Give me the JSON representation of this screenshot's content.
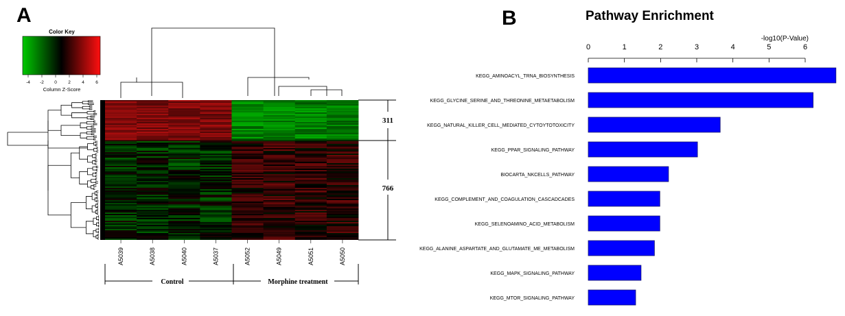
{
  "panel_a": {
    "letter": "A",
    "color_key": {
      "title": "Color Key",
      "label": "Column Z-Score",
      "ticks": [
        "-4",
        "-2",
        "0",
        "2",
        "4",
        "6"
      ],
      "colors": [
        "#00c800",
        "#000000",
        "#ff0000"
      ]
    }
  },
  "panel_b": {
    "letter": "B"
  },
  "chart_data": [
    {
      "type": "heatmap",
      "title": "",
      "samples": [
        "A5039",
        "A5038",
        "A5040",
        "A5037",
        "A5052",
        "A5049",
        "A5051",
        "A5050"
      ],
      "groups": [
        {
          "label": "Control",
          "samples": [
            "A5039",
            "A5038",
            "A5040",
            "A5037"
          ]
        },
        {
          "label": "Morphine treatment",
          "samples": [
            "A5052",
            "A5049",
            "A5051",
            "A5050"
          ]
        }
      ],
      "gene_clusters": [
        {
          "label": "311",
          "count": 311
        },
        {
          "label": "766",
          "count": 766
        }
      ],
      "color_scale": {
        "label": "Column Z-Score",
        "low": "#00c800",
        "mid": "#000000",
        "high": "#ff0000"
      }
    },
    {
      "type": "bar",
      "orientation": "horizontal",
      "title": "Pathway Enrichment",
      "xlabel": "-log10(P-Value)",
      "xlim": [
        0,
        6.7
      ],
      "xticks": [
        "0",
        "1",
        "2",
        "3",
        "4",
        "5",
        "6"
      ],
      "bar_color": "#0000ff",
      "categories": [
        "KEGG_AMINOACYL_TRNA_BIOSYNTHESIS",
        "KEGG_GLYCINE_SERINE_AND_THREONINE_METAETABOLISM",
        "KEGG_NATURAL_KILLER_CELL_MEDIATED_CYTOYTOTOXICITY",
        "KEGG_PPAR_SIGNALING_PATHWAY",
        "BIOCARTA_NKCELLS_PATHWAY",
        "KEGG_COMPLEMENT_AND_COAGULATION_CASCADCADES",
        "KEGG_SELENOAMINO_ACID_METABOLISM",
        "KEGG_ALANINE_ASPARTATE_AND_GLUTAMATE_ME_METABOLISM",
        "KEGG_MAPK_SIGNALING_PATHWAY",
        "KEGG_MTOR_SIGNALING_PATHWAY"
      ],
      "values": [
        6.85,
        6.22,
        3.65,
        3.02,
        2.22,
        1.98,
        1.98,
        1.83,
        1.46,
        1.31
      ]
    }
  ]
}
